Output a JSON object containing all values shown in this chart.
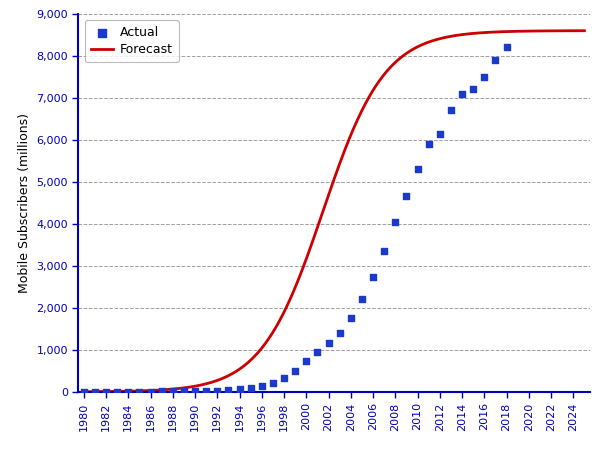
{
  "actual_years": [
    1980,
    1981,
    1982,
    1983,
    1984,
    1985,
    1986,
    1987,
    1988,
    1989,
    1990,
    1991,
    1992,
    1993,
    1994,
    1995,
    1996,
    1997,
    1998,
    1999,
    2000,
    2001,
    2002,
    2003,
    2004,
    2005,
    2006,
    2007,
    2008,
    2009,
    2010,
    2011,
    2012,
    2013,
    2014,
    2015,
    2016,
    2017,
    2018
  ],
  "actual_values": [
    1,
    1,
    1,
    2,
    3,
    4,
    6,
    9,
    13,
    17,
    11,
    16,
    23,
    34,
    56,
    91,
    145,
    215,
    318,
    490,
    740,
    960,
    1155,
    1390,
    1750,
    2200,
    2740,
    3350,
    4050,
    4670,
    5300,
    5900,
    6150,
    6700,
    7100,
    7200,
    7500,
    7900,
    8200
  ],
  "forecast_x_start": 1980,
  "forecast_x_end": 2025,
  "logistic_L": 8600,
  "logistic_k": 0.36,
  "logistic_x0": 2001.5,
  "ylim": [
    0,
    9000
  ],
  "xlim": [
    1979.5,
    2025.5
  ],
  "yticks": [
    0,
    1000,
    2000,
    3000,
    4000,
    5000,
    6000,
    7000,
    8000,
    9000
  ],
  "xticks": [
    1980,
    1982,
    1984,
    1986,
    1988,
    1990,
    1992,
    1994,
    1996,
    1998,
    2000,
    2002,
    2004,
    2006,
    2008,
    2010,
    2012,
    2014,
    2016,
    2018,
    2020,
    2022,
    2024
  ],
  "ylabel": "Mobile Subscribers (millions)",
  "legend_actual_label": "Actual",
  "legend_forecast_label": "Forecast",
  "dot_color": "#1a3acc",
  "line_color": "#cc0000",
  "bg_color": "#ffffff",
  "plot_bg_color": "#ffffff",
  "grid_color": "#888888",
  "axis_color": "#0000bb",
  "tick_label_color": "#000000",
  "title_color": "#000000"
}
